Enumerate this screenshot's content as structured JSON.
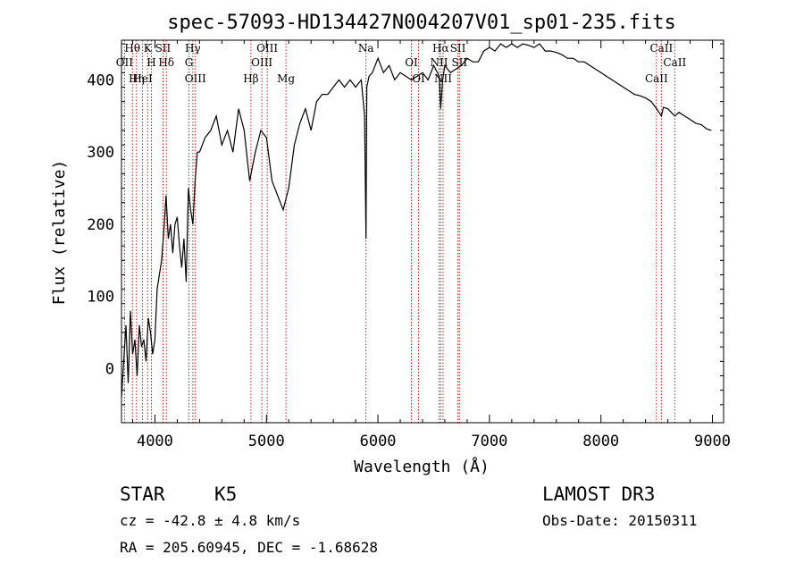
{
  "chart_data": {
    "type": "line",
    "title": "spec-57093-HD134427N004207V01_sp01-235.fits",
    "xlabel": "Wavelength (Å)",
    "ylabel": "Flux (relative)",
    "xlim": [
      3700,
      9100
    ],
    "ylim": [
      -75,
      455
    ],
    "xticks": [
      4000,
      5000,
      6000,
      7000,
      8000,
      9000
    ],
    "yticks": [
      0,
      100,
      200,
      300,
      400
    ],
    "series": [
      {
        "name": "flux",
        "x": [
          3700,
          3720,
          3740,
          3760,
          3780,
          3800,
          3820,
          3840,
          3860,
          3880,
          3900,
          3920,
          3940,
          3960,
          3980,
          4000,
          4020,
          4040,
          4060,
          4080,
          4100,
          4120,
          4140,
          4160,
          4180,
          4200,
          4220,
          4240,
          4260,
          4280,
          4300,
          4320,
          4340,
          4360,
          4380,
          4400,
          4450,
          4500,
          4550,
          4600,
          4650,
          4700,
          4750,
          4800,
          4850,
          4900,
          4950,
          5000,
          5050,
          5100,
          5150,
          5200,
          5250,
          5300,
          5350,
          5400,
          5450,
          5500,
          5550,
          5600,
          5650,
          5700,
          5750,
          5800,
          5850,
          5880,
          5893,
          5900,
          5920,
          5950,
          6000,
          6050,
          6100,
          6150,
          6200,
          6250,
          6300,
          6350,
          6400,
          6450,
          6500,
          6550,
          6563,
          6580,
          6600,
          6650,
          6700,
          6750,
          6800,
          6850,
          6900,
          6950,
          7000,
          7050,
          7100,
          7150,
          7200,
          7250,
          7300,
          7350,
          7400,
          7450,
          7500,
          7550,
          7600,
          7650,
          7700,
          7750,
          7800,
          7850,
          7900,
          7950,
          8000,
          8050,
          8100,
          8150,
          8200,
          8250,
          8300,
          8350,
          8400,
          8450,
          8500,
          8542,
          8560,
          8600,
          8662,
          8700,
          8750,
          8800,
          8850,
          8900,
          8950,
          8990
        ],
        "y": [
          -40,
          10,
          60,
          -20,
          80,
          20,
          40,
          -10,
          60,
          30,
          40,
          10,
          70,
          50,
          20,
          40,
          110,
          130,
          150,
          190,
          240,
          180,
          200,
          160,
          200,
          210,
          170,
          140,
          180,
          120,
          250,
          220,
          200,
          260,
          300,
          300,
          320,
          330,
          350,
          310,
          330,
          300,
          360,
          330,
          260,
          300,
          330,
          320,
          260,
          240,
          220,
          250,
          310,
          340,
          360,
          330,
          370,
          380,
          380,
          390,
          400,
          390,
          400,
          390,
          400,
          350,
          180,
          390,
          405,
          410,
          430,
          410,
          420,
          400,
          410,
          405,
          400,
          405,
          410,
          400,
          420,
          405,
          360,
          400,
          420,
          410,
          415,
          420,
          430,
          425,
          425,
          440,
          445,
          440,
          450,
          445,
          450,
          445,
          450,
          448,
          445,
          450,
          440,
          440,
          438,
          435,
          430,
          430,
          425,
          425,
          420,
          415,
          410,
          405,
          400,
          395,
          390,
          385,
          380,
          378,
          375,
          370,
          360,
          350,
          362,
          360,
          350,
          355,
          350,
          345,
          340,
          338,
          332,
          330
        ]
      }
    ],
    "emission_lines": [
      {
        "label": "Hθ",
        "wavelength": 3798
      },
      {
        "label": "OII",
        "wavelength": 3727
      },
      {
        "label": "Hη",
        "wavelength": 3835
      },
      {
        "label": "K",
        "wavelength": 3934
      },
      {
        "label": "H",
        "wavelength": 3968
      },
      {
        "label": "HeI",
        "wavelength": 3889
      },
      {
        "label": "SII",
        "wavelength": 4072
      },
      {
        "label": "Hδ",
        "wavelength": 4102
      },
      {
        "label": "OIII",
        "wavelength": 4363
      },
      {
        "label": "Hγ",
        "wavelength": 4340
      },
      {
        "label": "G",
        "wavelength": 4305
      },
      {
        "label": "Hβ",
        "wavelength": 4861
      },
      {
        "label": "OIII",
        "wavelength": 5007
      },
      {
        "label": "OIII",
        "wavelength": 4959
      },
      {
        "label": "Mg",
        "wavelength": 5175
      },
      {
        "label": "Na",
        "wavelength": 5893
      },
      {
        "label": "OI",
        "wavelength": 6300
      },
      {
        "label": "OI",
        "wavelength": 6364
      },
      {
        "label": "Hα",
        "wavelength": 6563
      },
      {
        "label": "NII",
        "wavelength": 6548
      },
      {
        "label": "NII",
        "wavelength": 6584
      },
      {
        "label": "SII",
        "wavelength": 6717
      },
      {
        "label": "SII",
        "wavelength": 6731
      },
      {
        "label": "CaII",
        "wavelength": 8498
      },
      {
        "label": "CaII",
        "wavelength": 8542
      },
      {
        "label": "CaII",
        "wavelength": 8662
      }
    ]
  },
  "info": {
    "class": "STAR",
    "subclass": "K5",
    "survey": "LAMOST DR3",
    "cz": "cz = -42.8 ± 4.8 km/s",
    "obs_date": "Obs-Date: 20150311",
    "coords": "RA = 205.60945, DEC =  -1.68628"
  },
  "colors": {
    "line_marker": "#cc0000",
    "spectrum": "#000000"
  }
}
